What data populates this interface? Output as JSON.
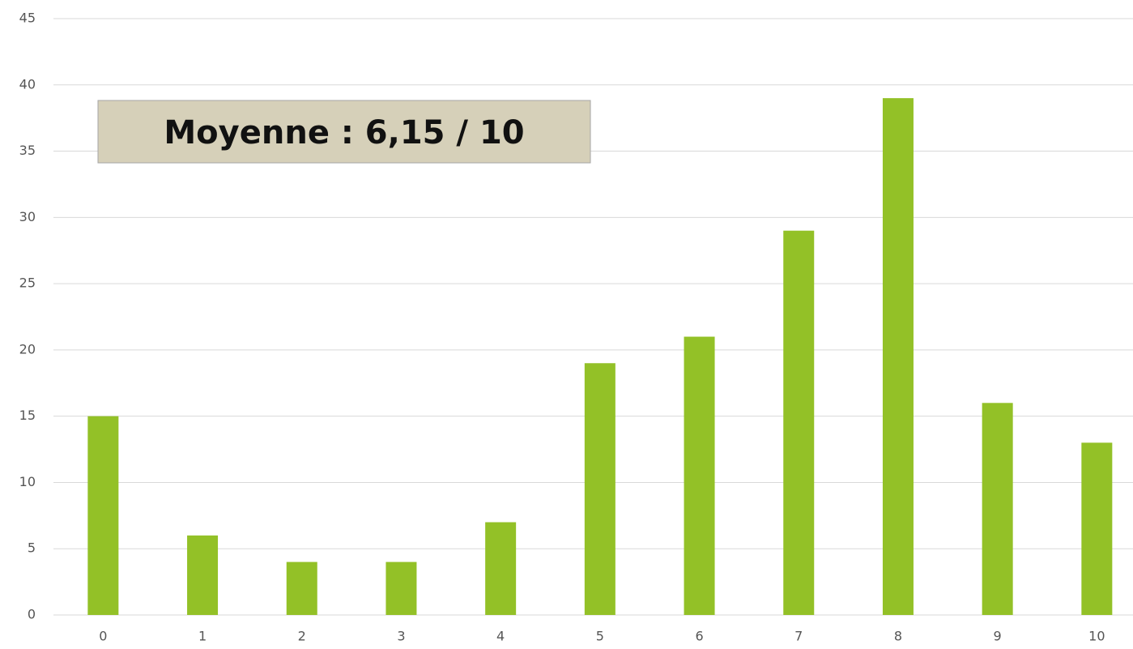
{
  "chart_data": {
    "type": "bar",
    "categories": [
      "0",
      "1",
      "2",
      "3",
      "4",
      "5",
      "6",
      "7",
      "8",
      "9",
      "10"
    ],
    "values": [
      15,
      6,
      4,
      4,
      7,
      19,
      21,
      29,
      39,
      16,
      13
    ],
    "color": "#93c127",
    "ylim": [
      0,
      45
    ],
    "yticks": [
      0,
      5,
      10,
      15,
      20,
      25,
      30,
      35,
      40,
      45
    ],
    "grid": true,
    "annotation": "Moyenne : 6,15 / 10"
  }
}
